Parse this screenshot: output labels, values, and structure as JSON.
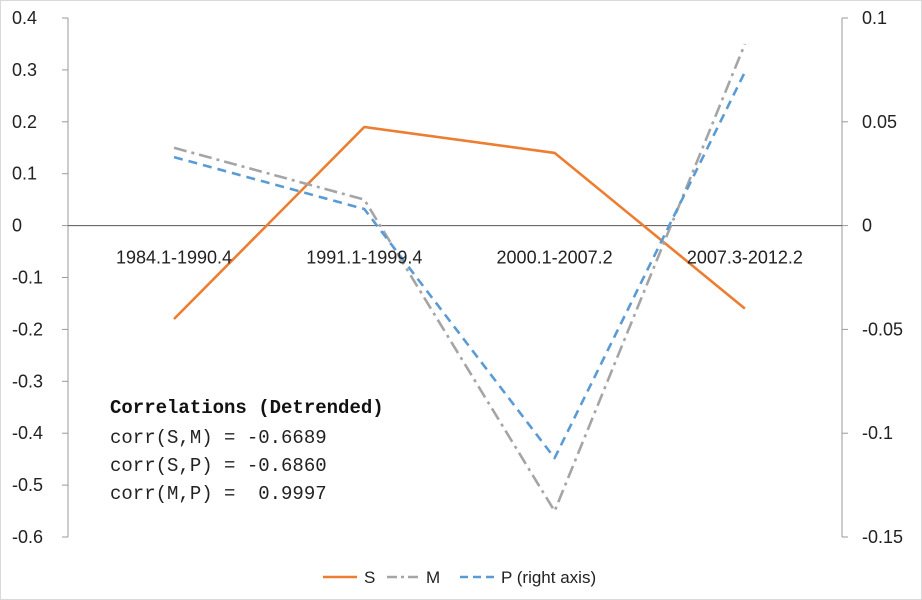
{
  "chart_data": {
    "type": "line",
    "categories": [
      "1984.1-1990.4",
      "1991.1-1999.4",
      "2000.1-2007.2",
      "2007.3-2012.2"
    ],
    "series": [
      {
        "name": "S",
        "axis": "left",
        "color": "#ED7D31",
        "dash": "solid",
        "values": [
          -0.18,
          0.19,
          0.14,
          -0.16
        ]
      },
      {
        "name": "M",
        "axis": "left",
        "color": "#A5A5A5",
        "dash": "dash-dot",
        "values": [
          0.15,
          0.05,
          -0.55,
          0.35
        ]
      },
      {
        "name": "P (right axis)",
        "axis": "right",
        "color": "#5B9BD5",
        "dash": "dash",
        "values": [
          0.033,
          0.008,
          -0.112,
          0.074
        ]
      }
    ],
    "left_axis": {
      "ylim": [
        -0.6,
        0.4
      ],
      "ticks": [
        0.4,
        0.3,
        0.2,
        0.1,
        0,
        -0.1,
        -0.2,
        -0.3,
        -0.4,
        -0.5,
        -0.6
      ],
      "tick_labels": [
        "0.4",
        "0.3",
        "0.2",
        "0.1",
        "0",
        "-0.1",
        "-0.2",
        "-0.3",
        "-0.4",
        "-0.5",
        "-0.6"
      ]
    },
    "right_axis": {
      "ylim": [
        -0.15,
        0.1
      ],
      "ticks": [
        0.1,
        0.05,
        0,
        -0.05,
        -0.1,
        -0.15
      ],
      "tick_labels": [
        "0.1",
        "0.05",
        "0",
        "-0.05",
        "-0.1",
        "-0.15"
      ]
    },
    "grid": false,
    "legend": {
      "placement": "bottom",
      "entries": [
        "S",
        "M",
        "P (right axis)"
      ]
    },
    "annotation": {
      "title": "Correlations (Detrended)",
      "lines": [
        "corr(S,M) = -0.6689",
        "corr(S,P) = -0.6860",
        "corr(M,P) =  0.9997"
      ]
    }
  }
}
